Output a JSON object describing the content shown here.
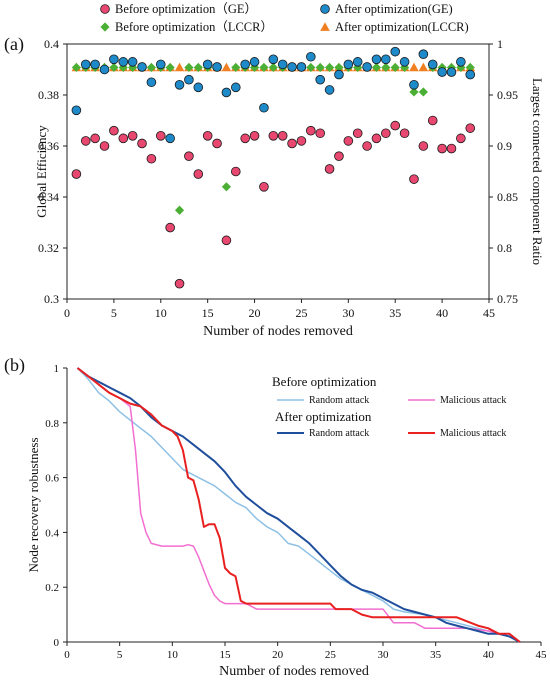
{
  "chart_data": [
    {
      "panel_label": "(a)",
      "type": "scatter",
      "xlabel": "Number of nodes removed",
      "ylabel": "Global Efficiency",
      "y2label": "Largest connected component Ratio",
      "xlim": [
        0,
        45
      ],
      "ylim": [
        0.3,
        0.4
      ],
      "y2lim": [
        0.75,
        1.0
      ],
      "x_ticks": [
        0,
        5,
        10,
        15,
        20,
        25,
        30,
        35,
        40,
        45
      ],
      "y_ticks": [
        "0.3",
        "0.32",
        "0.34",
        "0.36",
        "0.38",
        "0.4"
      ],
      "y2_ticks": [
        "0.75",
        "0.8",
        "0.85",
        "0.9",
        "0.95",
        "1"
      ],
      "grid": false,
      "legend_position": "top",
      "series": [
        {
          "name": "Before optimization（GE）",
          "axis": "left",
          "marker": "circle",
          "color": "#e8486f",
          "x": [
            1,
            2,
            3,
            4,
            5,
            6,
            7,
            8,
            9,
            10,
            11,
            12,
            13,
            14,
            15,
            16,
            17,
            18,
            19,
            20,
            21,
            22,
            23,
            24,
            25,
            26,
            27,
            28,
            29,
            30,
            31,
            32,
            33,
            34,
            35,
            36,
            37,
            38,
            39,
            40,
            41,
            42,
            43
          ],
          "y": [
            0.349,
            0.362,
            0.363,
            0.36,
            0.366,
            0.363,
            0.364,
            0.361,
            0.355,
            0.364,
            0.328,
            0.306,
            0.356,
            0.349,
            0.364,
            0.361,
            0.323,
            0.35,
            0.363,
            0.364,
            0.344,
            0.364,
            0.364,
            0.361,
            0.362,
            0.366,
            0.365,
            0.351,
            0.356,
            0.362,
            0.365,
            0.36,
            0.363,
            0.365,
            0.368,
            0.365,
            0.347,
            0.36,
            0.37,
            0.359,
            0.359,
            0.363,
            0.367
          ]
        },
        {
          "name": "After optimization(GE)",
          "axis": "left",
          "marker": "circle",
          "color": "#1f8ac9",
          "x": [
            1,
            2,
            3,
            4,
            5,
            6,
            7,
            8,
            9,
            10,
            11,
            12,
            13,
            14,
            15,
            16,
            17,
            18,
            19,
            20,
            21,
            22,
            23,
            24,
            25,
            26,
            27,
            28,
            29,
            30,
            31,
            32,
            33,
            34,
            35,
            36,
            37,
            38,
            39,
            40,
            41,
            42,
            43
          ],
          "y": [
            0.374,
            0.392,
            0.392,
            0.39,
            0.394,
            0.393,
            0.393,
            0.391,
            0.385,
            0.392,
            0.363,
            0.384,
            0.386,
            0.383,
            0.392,
            0.391,
            0.381,
            0.383,
            0.392,
            0.393,
            0.375,
            0.394,
            0.392,
            0.391,
            0.391,
            0.395,
            0.386,
            0.382,
            0.388,
            0.392,
            0.393,
            0.391,
            0.394,
            0.394,
            0.397,
            0.393,
            0.384,
            0.396,
            0.392,
            0.389,
            0.389,
            0.393,
            0.388
          ]
        },
        {
          "name": "Before optimization（LCCR）",
          "axis": "right",
          "marker": "diamond",
          "color": "#4caf35",
          "x": [
            1,
            2,
            3,
            4,
            5,
            6,
            7,
            8,
            9,
            10,
            11,
            12,
            13,
            14,
            15,
            16,
            17,
            18,
            19,
            20,
            21,
            22,
            23,
            24,
            25,
            26,
            27,
            28,
            29,
            30,
            31,
            32,
            33,
            34,
            35,
            36,
            37,
            38,
            39,
            40,
            41,
            42,
            43
          ],
          "y": [
            0.977,
            0.977,
            0.977,
            0.977,
            0.977,
            0.977,
            0.977,
            0.977,
            0.977,
            0.977,
            0.977,
            0.837,
            0.977,
            0.977,
            0.977,
            0.977,
            0.86,
            0.977,
            0.977,
            0.977,
            0.977,
            0.977,
            0.977,
            0.977,
            0.977,
            0.977,
            0.977,
            0.977,
            0.977,
            0.977,
            0.977,
            0.977,
            0.977,
            0.977,
            0.977,
            0.977,
            0.953,
            0.953,
            0.977,
            0.977,
            0.977,
            0.977,
            0.977
          ]
        },
        {
          "name": "After optimization(LCCR)",
          "axis": "right",
          "marker": "triangle",
          "color": "#f07f22",
          "x": [
            1,
            2,
            3,
            4,
            5,
            6,
            7,
            8,
            9,
            10,
            11,
            12,
            13,
            14,
            15,
            16,
            17,
            18,
            19,
            20,
            21,
            22,
            23,
            24,
            25,
            26,
            27,
            28,
            29,
            30,
            31,
            32,
            33,
            34,
            35,
            36,
            37,
            38,
            39,
            40,
            41,
            42,
            43
          ],
          "y": [
            0.977,
            0.977,
            0.977,
            0.977,
            0.977,
            0.977,
            0.977,
            0.977,
            0.977,
            0.977,
            0.977,
            0.977,
            0.977,
            0.977,
            0.977,
            0.977,
            0.977,
            0.977,
            0.977,
            0.977,
            0.977,
            0.977,
            0.977,
            0.977,
            0.977,
            0.977,
            0.977,
            0.977,
            0.977,
            0.977,
            0.977,
            0.977,
            0.977,
            0.977,
            0.977,
            0.977,
            0.977,
            0.977,
            0.977,
            0.977,
            0.977,
            0.977,
            0.977
          ]
        }
      ]
    },
    {
      "panel_label": "(b)",
      "type": "line",
      "xlabel": "Number of nodes removed",
      "ylabel": "Node recovery robustness",
      "xlim": [
        0,
        45
      ],
      "ylim": [
        0,
        1
      ],
      "x_ticks": [
        0,
        5,
        10,
        15,
        20,
        25,
        30,
        35,
        40,
        45
      ],
      "y_ticks": [
        "0",
        "0.2",
        "0.4",
        "0.6",
        "0.8",
        "1"
      ],
      "grid": false,
      "legend_groups": [
        {
          "title": "Before optimization",
          "series": [
            0,
            1
          ]
        },
        {
          "title": "After optimization",
          "series": [
            2,
            3
          ]
        }
      ],
      "series": [
        {
          "name": "Random attack",
          "group": "Before optimization",
          "color": "#8ec1e6",
          "x": [
            1,
            2,
            3,
            4,
            5,
            6,
            7,
            8,
            9,
            10,
            11,
            12,
            13,
            14,
            15,
            16,
            17,
            18,
            19,
            20,
            21,
            22,
            23,
            24,
            25,
            26,
            27,
            28,
            29,
            30,
            31,
            32,
            33,
            34,
            35,
            36,
            37,
            38,
            39,
            40,
            41,
            42,
            43
          ],
          "y": [
            1.0,
            0.96,
            0.91,
            0.88,
            0.84,
            0.81,
            0.78,
            0.75,
            0.71,
            0.67,
            0.63,
            0.61,
            0.59,
            0.57,
            0.54,
            0.51,
            0.49,
            0.45,
            0.42,
            0.4,
            0.36,
            0.35,
            0.32,
            0.29,
            0.26,
            0.23,
            0.21,
            0.19,
            0.17,
            0.15,
            0.12,
            0.11,
            0.105,
            0.1,
            0.09,
            0.08,
            0.07,
            0.06,
            0.05,
            0.04,
            0.03,
            0.02,
            0.0
          ]
        },
        {
          "name": "Malicious attack",
          "group": "Before optimization",
          "color": "#f26fd1",
          "x": [
            1,
            2,
            3,
            4,
            5,
            6,
            6.5,
            7,
            7.5,
            8,
            9,
            10,
            11,
            11.5,
            12,
            12.5,
            13,
            13.5,
            14,
            14.5,
            15,
            16,
            17,
            18,
            20,
            22,
            24,
            26,
            28,
            30,
            31,
            32,
            33,
            34,
            36,
            38,
            40,
            41,
            42,
            43
          ],
          "y": [
            1.0,
            0.97,
            0.94,
            0.91,
            0.89,
            0.86,
            0.7,
            0.47,
            0.4,
            0.36,
            0.35,
            0.35,
            0.35,
            0.355,
            0.35,
            0.31,
            0.26,
            0.21,
            0.17,
            0.15,
            0.14,
            0.14,
            0.14,
            0.12,
            0.12,
            0.12,
            0.12,
            0.12,
            0.12,
            0.12,
            0.07,
            0.07,
            0.07,
            0.05,
            0.05,
            0.05,
            0.04,
            0.03,
            0.02,
            0.0
          ]
        },
        {
          "name": "Random attack",
          "group": "After optimization",
          "color": "#1f4f9c",
          "x": [
            1,
            2,
            3,
            4,
            5,
            6,
            7,
            8,
            9,
            10,
            11,
            12,
            13,
            14,
            15,
            16,
            17,
            18,
            19,
            20,
            21,
            22,
            23,
            24,
            25,
            26,
            27,
            28,
            29,
            30,
            31,
            32,
            33,
            34,
            35,
            36,
            37,
            38,
            39,
            40,
            41,
            42,
            43
          ],
          "y": [
            1.0,
            0.97,
            0.95,
            0.93,
            0.91,
            0.89,
            0.86,
            0.82,
            0.79,
            0.77,
            0.75,
            0.72,
            0.69,
            0.66,
            0.62,
            0.57,
            0.53,
            0.5,
            0.47,
            0.45,
            0.42,
            0.39,
            0.36,
            0.32,
            0.28,
            0.24,
            0.21,
            0.19,
            0.18,
            0.16,
            0.14,
            0.12,
            0.11,
            0.1,
            0.09,
            0.07,
            0.06,
            0.05,
            0.04,
            0.03,
            0.03,
            0.02,
            0.0
          ]
        },
        {
          "name": "Malicious attack",
          "group": "After optimization",
          "color": "#e82020",
          "x": [
            1,
            2,
            3,
            4,
            5,
            6,
            7,
            8,
            9,
            10,
            10.5,
            11,
            11.5,
            12,
            12.5,
            13,
            13.5,
            14,
            14.5,
            15,
            15.5,
            16,
            16.5,
            17,
            18,
            20,
            22,
            24,
            25,
            25.5,
            26,
            27,
            28,
            29,
            30,
            31,
            33,
            35,
            37,
            39,
            40,
            41,
            42,
            43
          ],
          "y": [
            1.0,
            0.97,
            0.94,
            0.91,
            0.89,
            0.87,
            0.86,
            0.83,
            0.79,
            0.77,
            0.75,
            0.7,
            0.6,
            0.59,
            0.52,
            0.42,
            0.43,
            0.43,
            0.38,
            0.27,
            0.25,
            0.24,
            0.15,
            0.14,
            0.14,
            0.14,
            0.14,
            0.14,
            0.14,
            0.12,
            0.12,
            0.12,
            0.1,
            0.09,
            0.09,
            0.09,
            0.09,
            0.09,
            0.09,
            0.06,
            0.05,
            0.03,
            0.03,
            0.0
          ]
        }
      ]
    }
  ]
}
